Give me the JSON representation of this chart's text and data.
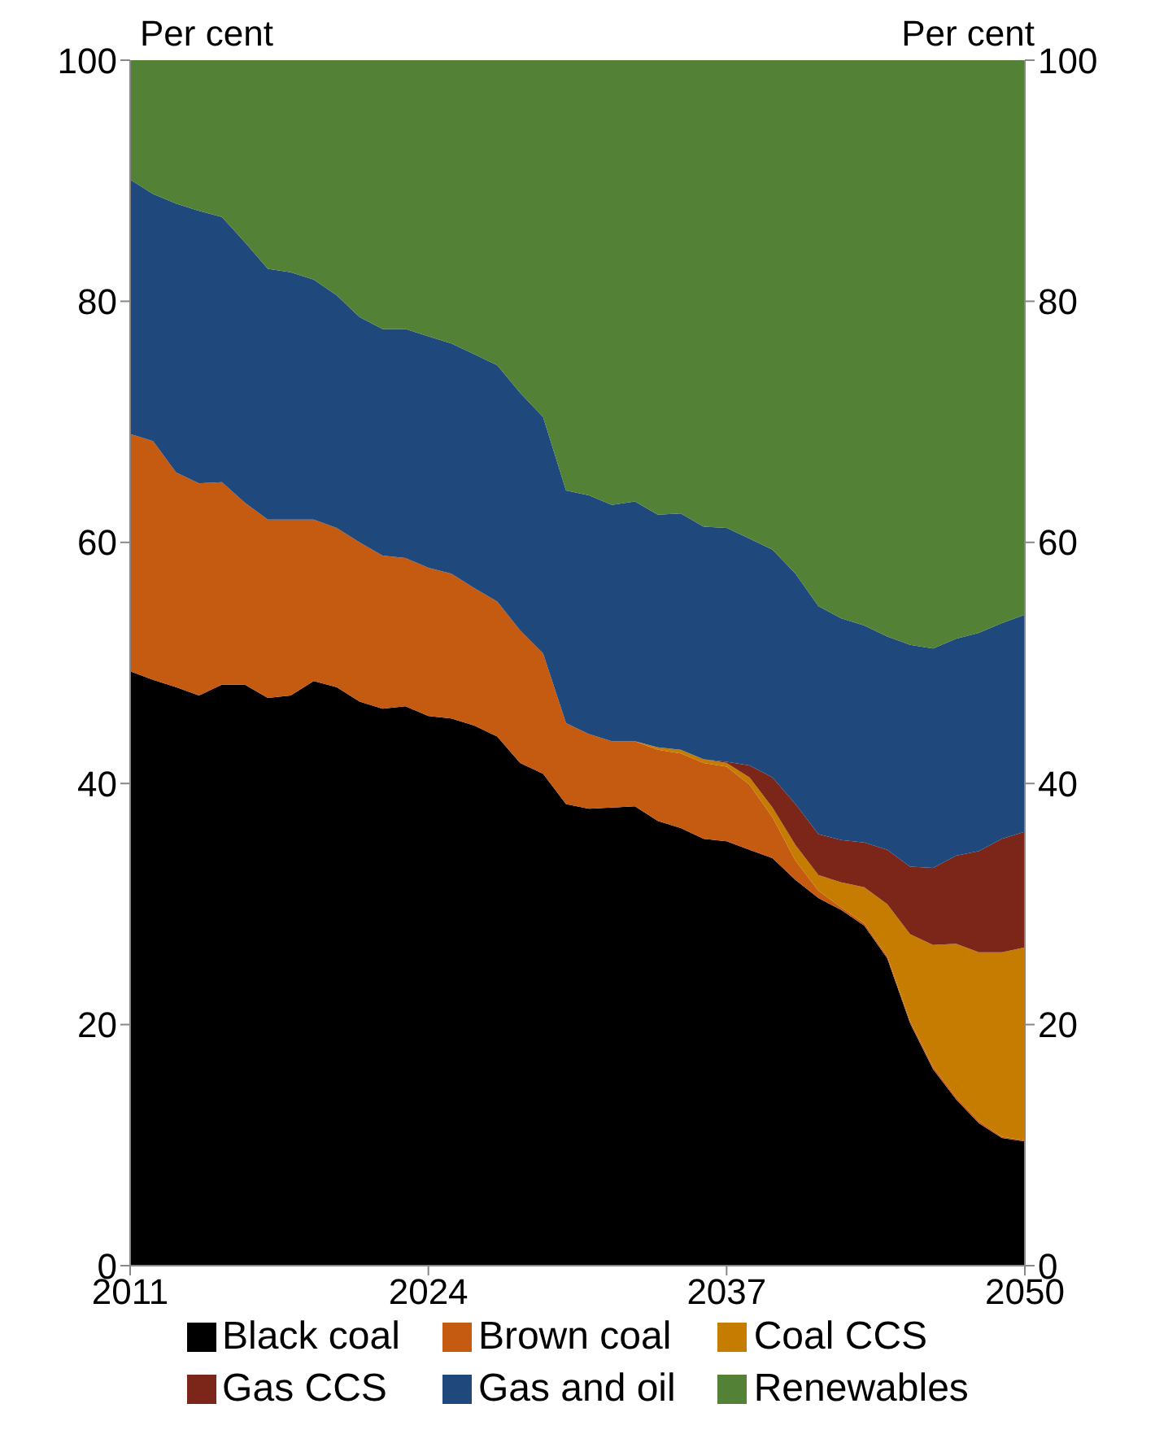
{
  "chart_data": {
    "type": "area",
    "stacked": true,
    "ylabel": "Per cent",
    "y2label": "Per cent",
    "x": [
      2011,
      2012,
      2013,
      2014,
      2015,
      2016,
      2017,
      2018,
      2019,
      2020,
      2021,
      2022,
      2023,
      2024,
      2025,
      2026,
      2027,
      2028,
      2029,
      2030,
      2031,
      2032,
      2033,
      2034,
      2035,
      2036,
      2037,
      2038,
      2039,
      2040,
      2041,
      2042,
      2043,
      2044,
      2045,
      2046,
      2047,
      2048,
      2049,
      2050
    ],
    "xlim": [
      2011,
      2050
    ],
    "xticks": [
      2011,
      2024,
      2037,
      2050
    ],
    "ylim": [
      0,
      100
    ],
    "yticks": [
      0,
      20,
      40,
      60,
      80,
      100
    ],
    "y2lim": [
      0,
      100
    ],
    "y2ticks": [
      0,
      20,
      40,
      60,
      80,
      100
    ],
    "grid": false,
    "legend": "bottom",
    "series": [
      {
        "name": "Black coal",
        "color": "#000000",
        "values": [
          49.3,
          48.6,
          48.0,
          47.3,
          48.2,
          48.2,
          47.1,
          47.3,
          48.5,
          48.0,
          46.8,
          46.2,
          46.4,
          45.6,
          45.4,
          44.8,
          43.9,
          41.7,
          40.8,
          38.3,
          37.9,
          38.0,
          38.1,
          36.9,
          36.3,
          35.4,
          35.2,
          34.5,
          33.8,
          32.0,
          30.5,
          29.5,
          28.2,
          25.5,
          20.1,
          16.3,
          13.8,
          11.8,
          10.6,
          10.3
        ]
      },
      {
        "name": "Brown coal",
        "color": "#c55a11",
        "values": [
          19.7,
          19.8,
          17.8,
          17.6,
          16.8,
          15.1,
          14.8,
          14.6,
          13.4,
          13.2,
          13.2,
          12.7,
          12.3,
          12.3,
          12.0,
          11.4,
          11.2,
          11.0,
          10.0,
          6.7,
          6.2,
          5.5,
          5.4,
          5.9,
          6.2,
          6.3,
          6.2,
          5.4,
          3.4,
          1.6,
          0.6,
          0.2,
          0.2,
          0.2,
          0.2,
          0.2,
          0.2,
          0.2,
          0.1,
          0.1
        ]
      },
      {
        "name": "Coal CCS",
        "color": "#c57c00",
        "values": [
          null,
          null,
          null,
          null,
          null,
          null,
          null,
          null,
          null,
          null,
          null,
          null,
          null,
          null,
          null,
          null,
          null,
          null,
          null,
          null,
          null,
          null,
          0,
          0.2,
          0.3,
          0.3,
          0.3,
          0.6,
          0.8,
          1.3,
          1.3,
          2.1,
          3.0,
          4.3,
          7.2,
          10.1,
          12.7,
          14.0,
          15.3,
          16.0
        ]
      },
      {
        "name": "Gas CCS",
        "color": "#7b2618",
        "values": [
          null,
          null,
          null,
          null,
          null,
          null,
          null,
          null,
          null,
          null,
          null,
          null,
          null,
          null,
          null,
          null,
          null,
          null,
          null,
          null,
          null,
          null,
          null,
          null,
          null,
          0,
          0.1,
          1.0,
          2.5,
          3.4,
          3.4,
          3.5,
          3.7,
          4.5,
          5.6,
          6.4,
          7.3,
          8.4,
          9.4,
          9.6
        ]
      },
      {
        "name": "Gas and oil",
        "color": "#1f497d",
        "values": [
          21.1,
          20.5,
          22.3,
          22.6,
          22.0,
          21.6,
          20.8,
          20.5,
          19.9,
          19.3,
          18.7,
          18.8,
          19.0,
          19.2,
          19.1,
          19.4,
          19.6,
          19.7,
          19.6,
          19.3,
          19.8,
          19.6,
          19.9,
          19.3,
          19.6,
          19.3,
          19.4,
          18.8,
          18.9,
          19.1,
          18.9,
          18.4,
          18.0,
          17.7,
          18.4,
          18.2,
          18.0,
          18.1,
          17.9,
          18.0
        ]
      },
      {
        "name": "Renewables",
        "color": "#538135",
        "values": [
          9.9,
          11.1,
          11.9,
          12.5,
          13.0,
          15.1,
          17.3,
          17.6,
          18.2,
          19.5,
          21.3,
          22.3,
          22.3,
          22.9,
          23.5,
          24.4,
          25.3,
          27.6,
          29.6,
          35.7,
          36.1,
          36.9,
          36.6,
          37.7,
          37.6,
          38.7,
          38.8,
          39.7,
          40.6,
          42.6,
          45.3,
          46.3,
          46.9,
          47.8,
          48.5,
          48.8,
          48.0,
          47.5,
          46.7,
          46.0
        ]
      }
    ]
  }
}
